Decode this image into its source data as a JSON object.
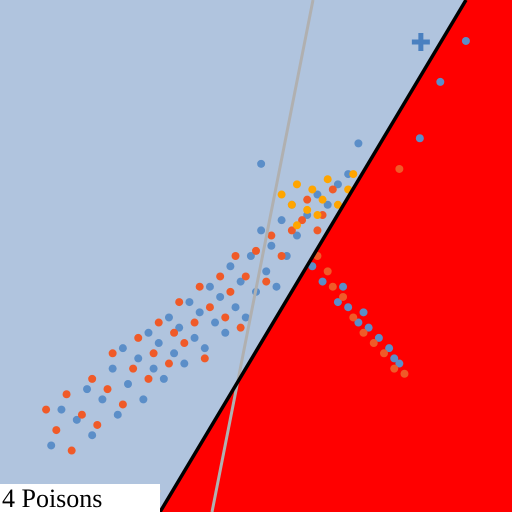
{
  "chart_data": {
    "type": "scatter",
    "title": "4 Poisons",
    "xlim": [
      0,
      100
    ],
    "ylim": [
      0,
      100
    ],
    "series": [
      {
        "name": null,
        "color": "#5b8ec8",
        "marker": "dot",
        "values": [
          [
            10,
            13
          ],
          [
            12,
            20
          ],
          [
            15,
            18
          ],
          [
            17,
            24
          ],
          [
            18,
            15
          ],
          [
            20,
            22
          ],
          [
            22,
            28
          ],
          [
            23,
            19
          ],
          [
            24,
            32
          ],
          [
            25,
            25
          ],
          [
            27,
            30
          ],
          [
            28,
            22
          ],
          [
            29,
            35
          ],
          [
            30,
            28
          ],
          [
            31,
            33
          ],
          [
            32,
            26
          ],
          [
            33,
            38
          ],
          [
            34,
            31
          ],
          [
            35,
            36
          ],
          [
            36,
            29
          ],
          [
            37,
            41
          ],
          [
            38,
            34
          ],
          [
            39,
            39
          ],
          [
            40,
            32
          ],
          [
            41,
            44
          ],
          [
            42,
            37
          ],
          [
            43,
            42
          ],
          [
            44,
            35
          ],
          [
            45,
            48
          ],
          [
            46,
            40
          ],
          [
            47,
            45
          ],
          [
            48,
            38
          ],
          [
            49,
            50
          ],
          [
            50,
            43
          ],
          [
            51,
            55
          ],
          [
            52,
            47
          ],
          [
            53,
            52
          ],
          [
            54,
            44
          ],
          [
            55,
            57
          ],
          [
            56,
            50
          ],
          [
            57,
            60
          ],
          [
            58,
            54
          ],
          [
            60,
            58
          ],
          [
            62,
            62
          ],
          [
            64,
            60
          ],
          [
            66,
            64
          ],
          [
            68,
            66
          ],
          [
            70,
            72
          ],
          [
            51,
            68
          ],
          [
            82,
            73
          ],
          [
            86,
            84
          ],
          [
            91,
            92
          ],
          [
            61,
            48
          ],
          [
            63,
            45
          ],
          [
            66,
            41
          ],
          [
            68,
            40
          ],
          [
            70,
            37
          ],
          [
            72,
            36
          ],
          [
            74,
            34
          ],
          [
            76,
            32
          ],
          [
            77,
            30
          ],
          [
            67,
            44
          ],
          [
            71,
            39
          ],
          [
            78,
            29
          ]
        ]
      },
      {
        "name": null,
        "color": "#f05a28",
        "marker": "dot",
        "values": [
          [
            9,
            20
          ],
          [
            11,
            16
          ],
          [
            13,
            23
          ],
          [
            14,
            12
          ],
          [
            16,
            19
          ],
          [
            18,
            26
          ],
          [
            19,
            17
          ],
          [
            21,
            24
          ],
          [
            22,
            31
          ],
          [
            24,
            21
          ],
          [
            26,
            28
          ],
          [
            27,
            34
          ],
          [
            29,
            26
          ],
          [
            30,
            31
          ],
          [
            31,
            37
          ],
          [
            33,
            29
          ],
          [
            34,
            35
          ],
          [
            35,
            41
          ],
          [
            36,
            33
          ],
          [
            38,
            37
          ],
          [
            39,
            44
          ],
          [
            40,
            30
          ],
          [
            41,
            40
          ],
          [
            43,
            46
          ],
          [
            44,
            38
          ],
          [
            45,
            43
          ],
          [
            46,
            50
          ],
          [
            47,
            36
          ],
          [
            48,
            46
          ],
          [
            50,
            51
          ],
          [
            52,
            45
          ],
          [
            53,
            54
          ],
          [
            55,
            50
          ],
          [
            57,
            55
          ],
          [
            59,
            57
          ],
          [
            60,
            61
          ],
          [
            63,
            58
          ],
          [
            65,
            63
          ],
          [
            78,
            67
          ],
          [
            62,
            50
          ],
          [
            64,
            47
          ],
          [
            65,
            44
          ],
          [
            67,
            42
          ],
          [
            69,
            38
          ],
          [
            71,
            35
          ],
          [
            73,
            33
          ],
          [
            75,
            31
          ],
          [
            77,
            28
          ],
          [
            79,
            27
          ],
          [
            62,
            55
          ]
        ]
      },
      {
        "name": null,
        "color": "#ffa500",
        "marker": "dot",
        "values": [
          [
            55,
            62
          ],
          [
            57,
            60
          ],
          [
            58,
            64
          ],
          [
            60,
            59
          ],
          [
            61,
            63
          ],
          [
            62,
            58
          ],
          [
            63,
            61
          ],
          [
            64,
            65
          ],
          [
            66,
            60
          ],
          [
            68,
            63
          ],
          [
            69,
            66
          ],
          [
            58,
            56
          ]
        ]
      },
      {
        "name": null,
        "color": "#4a80c0",
        "marker": "plus",
        "values": [
          [
            82.2,
            91.8
          ]
        ]
      }
    ]
  }
}
